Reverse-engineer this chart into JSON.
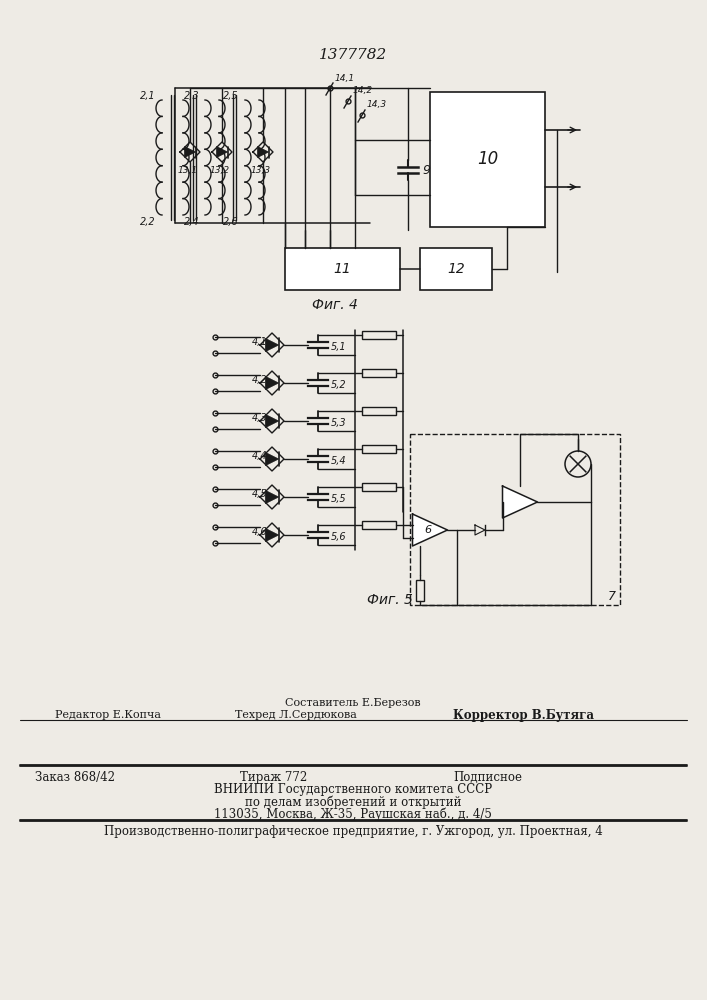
{
  "title": "1377782",
  "fig4_label": "Фиг. 4",
  "fig5_label": "Фиг. 5",
  "bg_color": "#eeebe5",
  "line_color": "#1a1a1a"
}
